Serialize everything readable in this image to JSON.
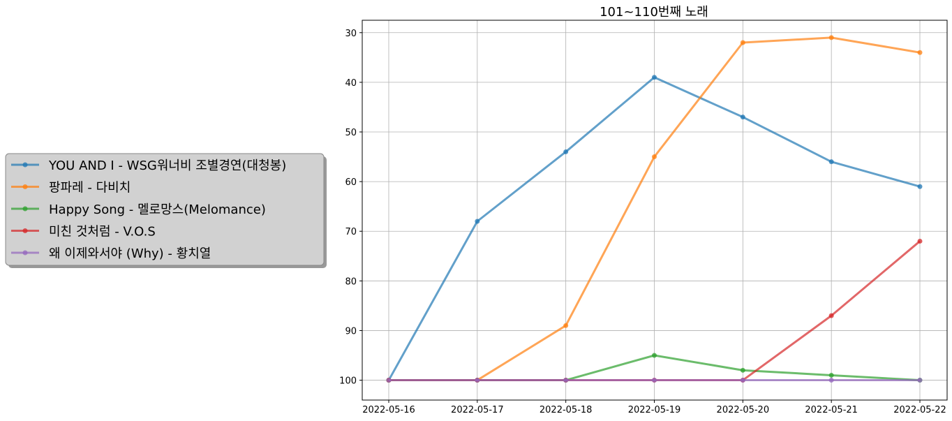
{
  "chart_data": {
    "type": "line",
    "title": "101~110번째 노래",
    "xlabel": "",
    "ylabel": "",
    "x": [
      "2022-05-16",
      "2022-05-17",
      "2022-05-18",
      "2022-05-19",
      "2022-05-20",
      "2022-05-21",
      "2022-05-22"
    ],
    "y_inverted": true,
    "ylim": [
      104,
      27.5
    ],
    "yticks": [
      30,
      40,
      50,
      60,
      70,
      80,
      90,
      100
    ],
    "grid": true,
    "legend_position": "left-center",
    "series": [
      {
        "name": "YOU AND I - WSG워너비 조별경연(대청봉)",
        "color": "#1f77b4",
        "values": [
          100,
          68,
          54,
          39,
          47,
          56,
          61
        ]
      },
      {
        "name": "팡파레 - 다비치",
        "color": "#ff7f0e",
        "values": [
          100,
          100,
          89,
          55,
          32,
          31,
          34
        ]
      },
      {
        "name": "Happy Song - 멜로망스(Melomance)",
        "color": "#2ca02c",
        "values": [
          100,
          100,
          100,
          95,
          98,
          99,
          100
        ]
      },
      {
        "name": "미친 것처럼 - V.O.S",
        "color": "#d62728",
        "values": [
          100,
          100,
          100,
          100,
          100,
          87,
          72
        ]
      },
      {
        "name": "왜 이제와서야 (Why) - 황치열",
        "color": "#9467bd",
        "values": [
          100,
          100,
          100,
          100,
          100,
          100,
          100
        ]
      }
    ]
  }
}
